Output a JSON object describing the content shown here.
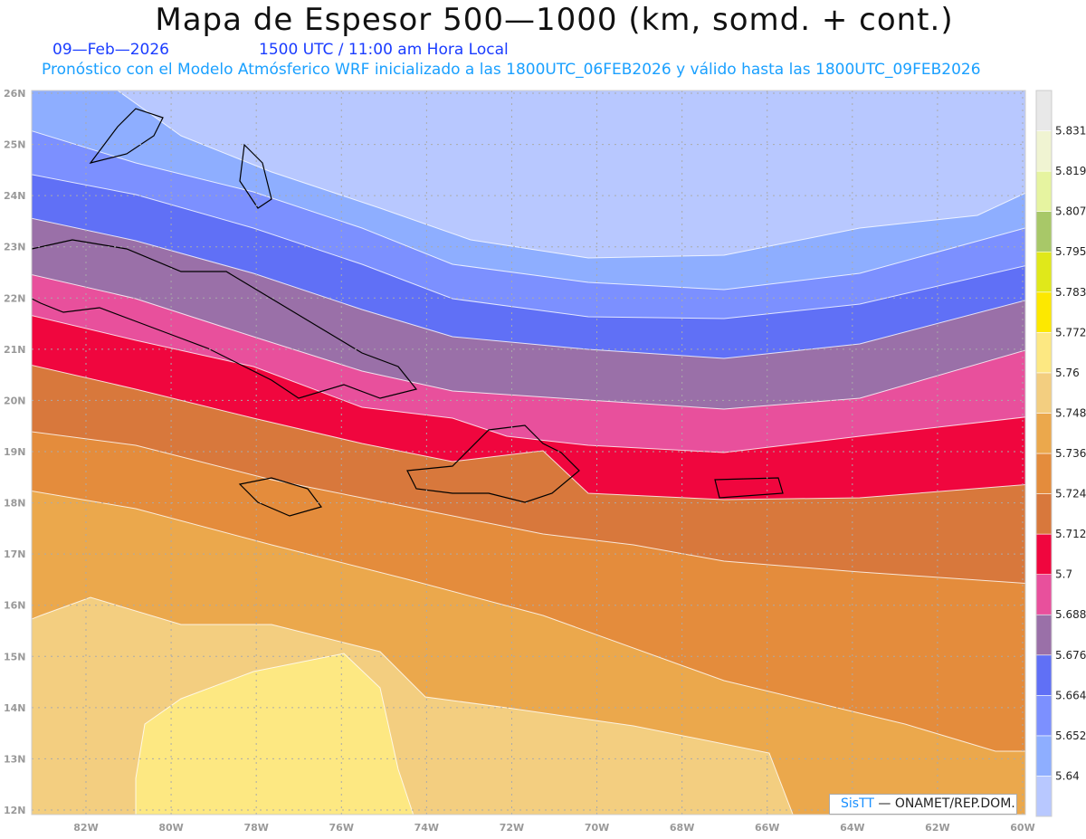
{
  "header": {
    "title": "Mapa de Espesor 500—1000 (km, somd. + cont.)",
    "date": "09—Feb—2026",
    "time": "1500 UTC / 11:00 am Hora Local",
    "description": "Pronóstico con el Modelo Atmósferico WRF inicializado a las 1800UTC_06FEB2026 y válido hasta las  1800UTC_09FEB2026"
  },
  "axes": {
    "lat_labels": [
      "26N",
      "25N",
      "24N",
      "23N",
      "22N",
      "21N",
      "20N",
      "19N",
      "18N",
      "17N",
      "16N",
      "15N",
      "14N",
      "13N",
      "12N"
    ],
    "lon_labels": [
      "82W",
      "80W",
      "78W",
      "76W",
      "74W",
      "72W",
      "70W",
      "68W",
      "66W",
      "64W",
      "62W",
      "60W"
    ]
  },
  "colorbar": {
    "labels": [
      "5.64",
      "5.652",
      "5.664",
      "5.676",
      "5.688",
      "5.7",
      "5.712",
      "5.724",
      "5.736",
      "5.748",
      "5.76",
      "5.772",
      "5.783",
      "5.795",
      "5.807",
      "5.819",
      "5.831"
    ],
    "colors": [
      "#b8c8ff",
      "#8eaeff",
      "#7c90ff",
      "#6070f6",
      "#9a70a8",
      "#e8509c",
      "#f0063e",
      "#d8783c",
      "#e48c3c",
      "#eba84c",
      "#f3ce80",
      "#fde882",
      "#fde800",
      "#e0e81a",
      "#a8c868",
      "#e6f4a0",
      "#f0f4d2",
      "#e8e8e8"
    ]
  },
  "credit": {
    "brand": "SisTT",
    "text": "—  ONAMET/REP.DOM."
  }
}
